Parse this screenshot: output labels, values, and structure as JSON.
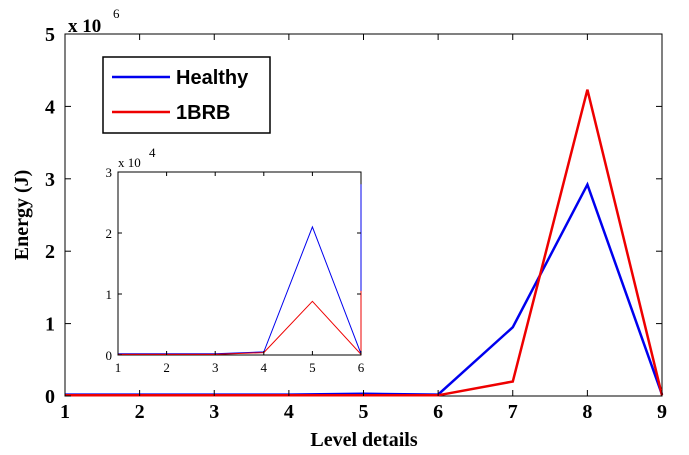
{
  "chart_data": [
    {
      "type": "line",
      "xlabel": "Level details",
      "ylabel": "Energy (J)",
      "y_multiplier_label": "x 10",
      "y_multiplier_exponent": "6",
      "x_ticks": [
        1,
        2,
        3,
        4,
        5,
        6,
        7,
        8,
        9
      ],
      "y_ticks": [
        0,
        1,
        2,
        3,
        4,
        5
      ],
      "xlim": [
        1,
        9
      ],
      "ylim": [
        0,
        5
      ],
      "legend_position": "top-left",
      "series": [
        {
          "name": "Healthy",
          "color": "#0000ee",
          "x": [
            1,
            2,
            3,
            4,
            5,
            6,
            7,
            8,
            9
          ],
          "y": [
            0.02,
            0.02,
            0.02,
            0.02,
            0.03,
            0.02,
            0.95,
            2.92,
            0.02
          ]
        },
        {
          "name": "1BRB",
          "color": "#ee0000",
          "x": [
            1,
            2,
            3,
            4,
            5,
            6,
            7,
            8,
            9
          ],
          "y": [
            0.01,
            0.01,
            0.01,
            0.01,
            0.01,
            0.01,
            0.2,
            4.23,
            0.01
          ]
        }
      ]
    },
    {
      "type": "line",
      "role": "inset",
      "y_multiplier_label": "x 10",
      "y_multiplier_exponent": "4",
      "x_ticks": [
        1,
        2,
        3,
        4,
        5,
        6
      ],
      "y_ticks": [
        0,
        1,
        2,
        3
      ],
      "xlim": [
        1,
        6
      ],
      "ylim": [
        0,
        3
      ],
      "series": [
        {
          "name": "Healthy",
          "color": "#0000ee",
          "x": [
            1,
            2,
            3,
            4,
            5,
            6,
            6
          ],
          "y": [
            0.02,
            0.02,
            0.02,
            0.05,
            2.1,
            0.02,
            2.8
          ]
        },
        {
          "name": "1BRB",
          "color": "#ee0000",
          "x": [
            1,
            2,
            3,
            4,
            5,
            6,
            6
          ],
          "y": [
            0.01,
            0.01,
            0.01,
            0.04,
            0.88,
            0.01,
            1.05
          ]
        }
      ]
    }
  ]
}
